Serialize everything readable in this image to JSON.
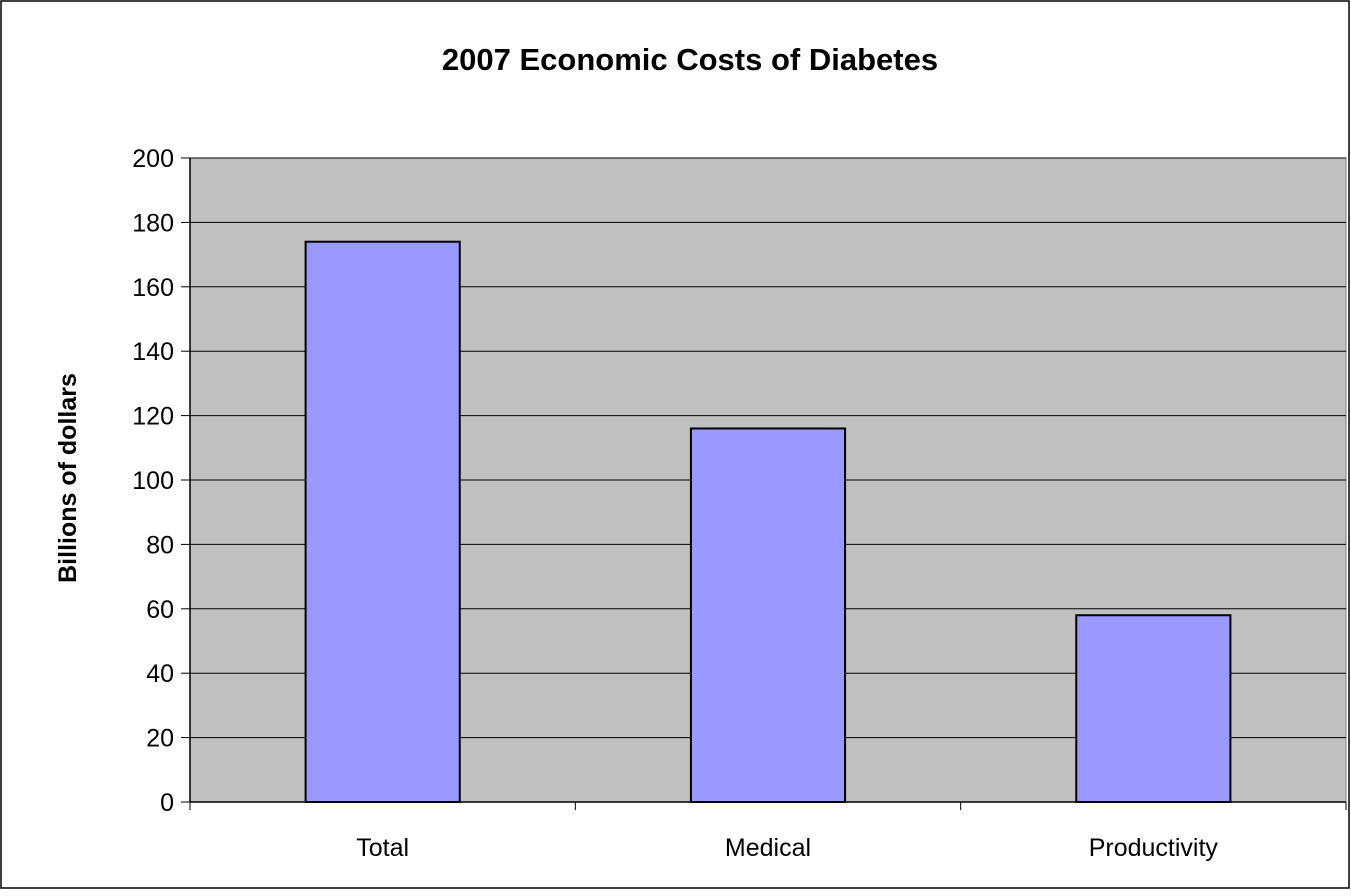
{
  "chart_data": {
    "type": "bar",
    "title": "2007 Economic Costs of Diabetes",
    "xlabel": "",
    "ylabel": "Billions of dollars",
    "categories": [
      "Total",
      "Medical",
      "Productivity"
    ],
    "values": [
      174,
      116,
      58
    ],
    "ylim": [
      0,
      200
    ],
    "yticks": [
      "0",
      "20",
      "40",
      "60",
      "80",
      "100",
      "120",
      "140",
      "160",
      "180",
      "200"
    ],
    "grid": true,
    "legend": "none",
    "colors": {
      "plot_background": "#c0c0c0",
      "bar_fill": "#9999ff",
      "bar_stroke": "#000000",
      "gridline": "#000000"
    }
  }
}
